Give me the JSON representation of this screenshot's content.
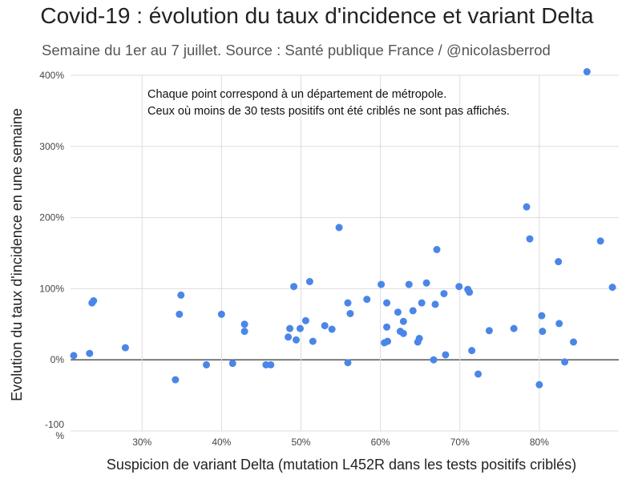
{
  "chart_data": {
    "type": "scatter",
    "title": "Covid-19 : évolution du taux d'incidence et variant Delta",
    "subtitle": "Semaine du 1er au 7 juillet. Source : Santé publique France  / @nicolasberrod",
    "xlabel": "Suspicion de variant Delta (mutation L452R dans les tests positifs criblés)",
    "ylabel": "Evolution du taux d'incidence en une semaine",
    "xlim": [
      21,
      90
    ],
    "ylim": [
      -100,
      400
    ],
    "xticks": [
      {
        "value": 30,
        "label": "30%"
      },
      {
        "value": 40,
        "label": "40%"
      },
      {
        "value": 50,
        "label": "50%"
      },
      {
        "value": 60,
        "label": "60%"
      },
      {
        "value": 70,
        "label": "70%"
      },
      {
        "value": 80,
        "label": "80%"
      }
    ],
    "yticks": [
      {
        "value": 400,
        "label": "400%"
      },
      {
        "value": 300,
        "label": "300%"
      },
      {
        "value": 200,
        "label": "200%"
      },
      {
        "value": 100,
        "label": "100%"
      },
      {
        "value": 0,
        "label": "0%"
      }
    ],
    "ytick_min_label": [
      "-100",
      "%"
    ],
    "annotations": [
      "Chaque point correspond à un département de métropole.",
      "Ceux où moins de 30 tests positifs ont été criblés ne sont pas affichés."
    ],
    "point_color": "#4a86e8",
    "points": [
      [
        21.4,
        6
      ],
      [
        23.4,
        9
      ],
      [
        23.7,
        80
      ],
      [
        23.9,
        83
      ],
      [
        27.9,
        17
      ],
      [
        34.2,
        -28
      ],
      [
        34.7,
        64
      ],
      [
        34.9,
        91
      ],
      [
        38.1,
        -7
      ],
      [
        40.0,
        64
      ],
      [
        41.4,
        -5
      ],
      [
        42.9,
        50
      ],
      [
        42.9,
        40
      ],
      [
        45.6,
        -7
      ],
      [
        46.2,
        -7
      ],
      [
        48.4,
        32
      ],
      [
        48.6,
        44
      ],
      [
        49.1,
        103
      ],
      [
        49.4,
        28
      ],
      [
        49.9,
        44
      ],
      [
        50.6,
        55
      ],
      [
        51.1,
        110
      ],
      [
        51.5,
        26
      ],
      [
        53.0,
        48
      ],
      [
        53.9,
        43
      ],
      [
        54.8,
        186
      ],
      [
        55.9,
        80
      ],
      [
        55.9,
        -4
      ],
      [
        56.2,
        65
      ],
      [
        58.3,
        85
      ],
      [
        60.1,
        106
      ],
      [
        60.5,
        24
      ],
      [
        60.8,
        80
      ],
      [
        60.8,
        46
      ],
      [
        60.9,
        26
      ],
      [
        62.2,
        67
      ],
      [
        62.5,
        40
      ],
      [
        62.9,
        54
      ],
      [
        62.9,
        37
      ],
      [
        63.6,
        106
      ],
      [
        64.1,
        69
      ],
      [
        64.7,
        25
      ],
      [
        64.9,
        30
      ],
      [
        65.2,
        80
      ],
      [
        65.8,
        108
      ],
      [
        66.7,
        0
      ],
      [
        66.9,
        78
      ],
      [
        67.1,
        155
      ],
      [
        68.0,
        93
      ],
      [
        68.2,
        7
      ],
      [
        69.9,
        103
      ],
      [
        71.0,
        99
      ],
      [
        71.2,
        95
      ],
      [
        71.5,
        13
      ],
      [
        72.3,
        -20
      ],
      [
        73.7,
        41
      ],
      [
        76.8,
        44
      ],
      [
        78.4,
        215
      ],
      [
        78.8,
        170
      ],
      [
        80.0,
        -35
      ],
      [
        80.3,
        62
      ],
      [
        80.4,
        40
      ],
      [
        82.4,
        138
      ],
      [
        82.5,
        51
      ],
      [
        83.2,
        -3
      ],
      [
        84.3,
        25
      ],
      [
        86.0,
        405
      ],
      [
        87.7,
        167
      ],
      [
        89.2,
        102
      ]
    ]
  }
}
